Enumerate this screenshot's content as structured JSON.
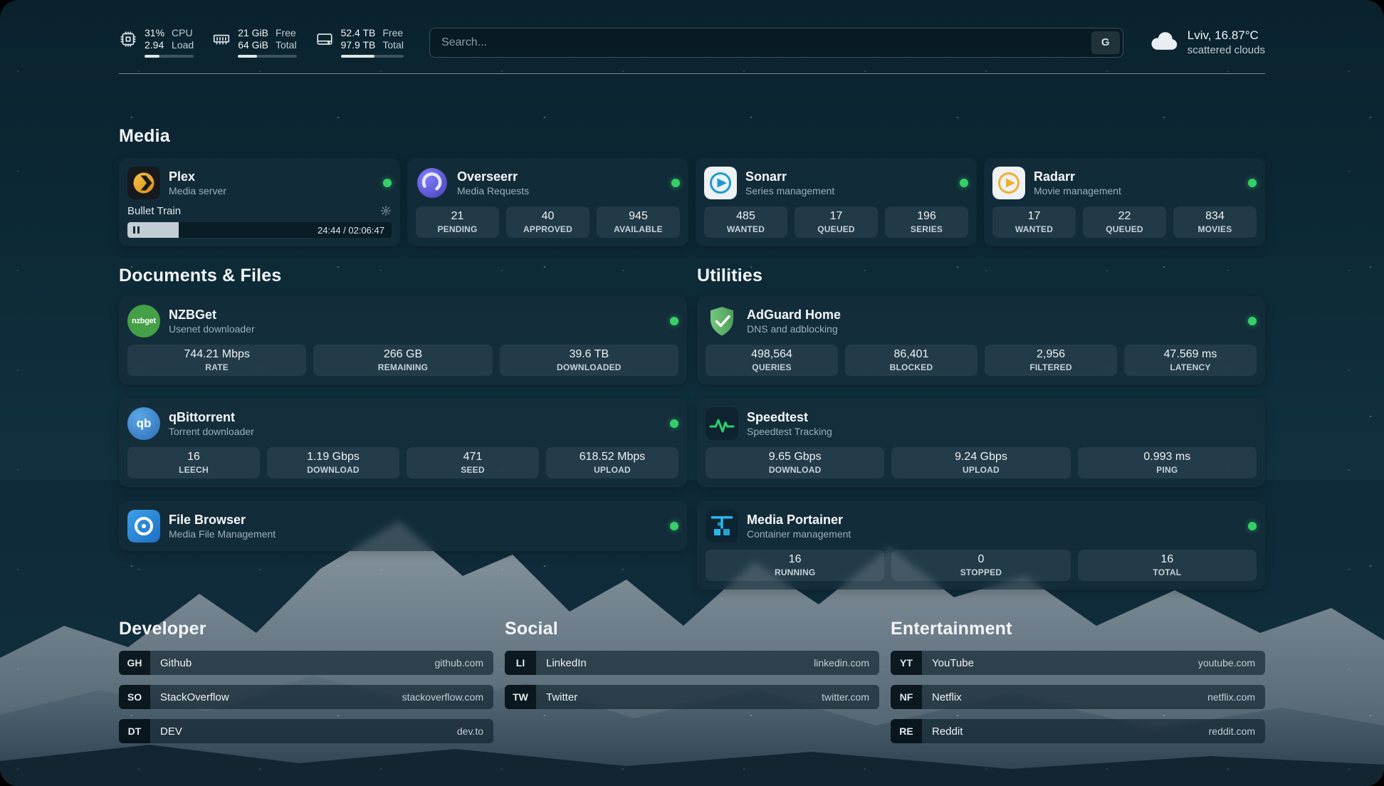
{
  "topbar": {
    "cpu": {
      "value1": "31%",
      "value2": "2.94",
      "label1": "CPU",
      "label2": "Load",
      "bar_percent": 31
    },
    "ram": {
      "value1": "21 GiB",
      "value2": "64 GiB",
      "label1": "Free",
      "label2": "Total",
      "bar_percent": 33
    },
    "disk": {
      "value1": "52.4 TB",
      "value2": "97.9 TB",
      "label1": "Free",
      "label2": "Total",
      "bar_percent": 54
    },
    "search": {
      "placeholder": "Search...",
      "button": "G"
    },
    "weather": {
      "line1": "Lviv, 16.87°C",
      "line2": "scattered clouds"
    }
  },
  "media": {
    "title": "Media",
    "plex": {
      "name": "Plex",
      "subtitle": "Media server",
      "now_playing": "Bullet Train",
      "time": "24:44 / 02:06:47",
      "progress_percent": 19.5
    },
    "overseerr": {
      "name": "Overseerr",
      "subtitle": "Media Requests",
      "stats": [
        {
          "value": "21",
          "label": "PENDING"
        },
        {
          "value": "40",
          "label": "APPROVED"
        },
        {
          "value": "945",
          "label": "AVAILABLE"
        }
      ]
    },
    "sonarr": {
      "name": "Sonarr",
      "subtitle": "Series management",
      "stats": [
        {
          "value": "485",
          "label": "WANTED"
        },
        {
          "value": "17",
          "label": "QUEUED"
        },
        {
          "value": "196",
          "label": "SERIES"
        }
      ]
    },
    "radarr": {
      "name": "Radarr",
      "subtitle": "Movie management",
      "stats": [
        {
          "value": "17",
          "label": "WANTED"
        },
        {
          "value": "22",
          "label": "QUEUED"
        },
        {
          "value": "834",
          "label": "MOVIES"
        }
      ]
    }
  },
  "documents": {
    "title": "Documents & Files",
    "nzbget": {
      "name": "NZBGet",
      "subtitle": "Usenet downloader",
      "stats": [
        {
          "value": "744.21 Mbps",
          "label": "RATE"
        },
        {
          "value": "266 GB",
          "label": "REMAINING"
        },
        {
          "value": "39.6 TB",
          "label": "DOWNLOADED"
        }
      ]
    },
    "qbittorrent": {
      "name": "qBittorrent",
      "subtitle": "Torrent downloader",
      "stats": [
        {
          "value": "16",
          "label": "LEECH"
        },
        {
          "value": "1.19 Gbps",
          "label": "DOWNLOAD"
        },
        {
          "value": "471",
          "label": "SEED"
        },
        {
          "value": "618.52 Mbps",
          "label": "UPLOAD"
        }
      ]
    },
    "filebrowser": {
      "name": "File Browser",
      "subtitle": "Media File Management"
    }
  },
  "utilities": {
    "title": "Utilities",
    "adguard": {
      "name": "AdGuard Home",
      "subtitle": "DNS and adblocking",
      "stats": [
        {
          "value": "498,564",
          "label": "QUERIES"
        },
        {
          "value": "86,401",
          "label": "BLOCKED"
        },
        {
          "value": "2,956",
          "label": "FILTERED"
        },
        {
          "value": "47.569 ms",
          "label": "LATENCY"
        }
      ]
    },
    "speedtest": {
      "name": "Speedtest",
      "subtitle": "Speedtest Tracking",
      "stats": [
        {
          "value": "9.65 Gbps",
          "label": "DOWNLOAD"
        },
        {
          "value": "9.24 Gbps",
          "label": "UPLOAD"
        },
        {
          "value": "0.993 ms",
          "label": "PING"
        }
      ]
    },
    "portainer": {
      "name": "Media Portainer",
      "subtitle": "Container management",
      "stats": [
        {
          "value": "16",
          "label": "RUNNING"
        },
        {
          "value": "0",
          "label": "STOPPED"
        },
        {
          "value": "16",
          "label": "TOTAL"
        }
      ]
    }
  },
  "bookmarks": {
    "developer": {
      "title": "Developer",
      "items": [
        {
          "abbr": "GH",
          "name": "Github",
          "url": "github.com"
        },
        {
          "abbr": "SO",
          "name": "StackOverflow",
          "url": "stackoverflow.com"
        },
        {
          "abbr": "DT",
          "name": "DEV",
          "url": "dev.to"
        }
      ]
    },
    "social": {
      "title": "Social",
      "items": [
        {
          "abbr": "LI",
          "name": "LinkedIn",
          "url": "linkedin.com"
        },
        {
          "abbr": "TW",
          "name": "Twitter",
          "url": "twitter.com"
        }
      ]
    },
    "entertainment": {
      "title": "Entertainment",
      "items": [
        {
          "abbr": "YT",
          "name": "YouTube",
          "url": "youtube.com"
        },
        {
          "abbr": "NF",
          "name": "Netflix",
          "url": "netflix.com"
        },
        {
          "abbr": "RE",
          "name": "Reddit",
          "url": "reddit.com"
        }
      ]
    }
  },
  "icons": {
    "nzbget_text": "nzbget",
    "qbittorrent_text": "qb"
  },
  "colors": {
    "status_online": "#35d068",
    "plex_amber": "#e5a00d",
    "adguard_green": "#5a9e58",
    "speedtest_pulse": "#2bd06c",
    "portainer_blue": "#29b8ea",
    "background_teal": "#0d2a37"
  }
}
